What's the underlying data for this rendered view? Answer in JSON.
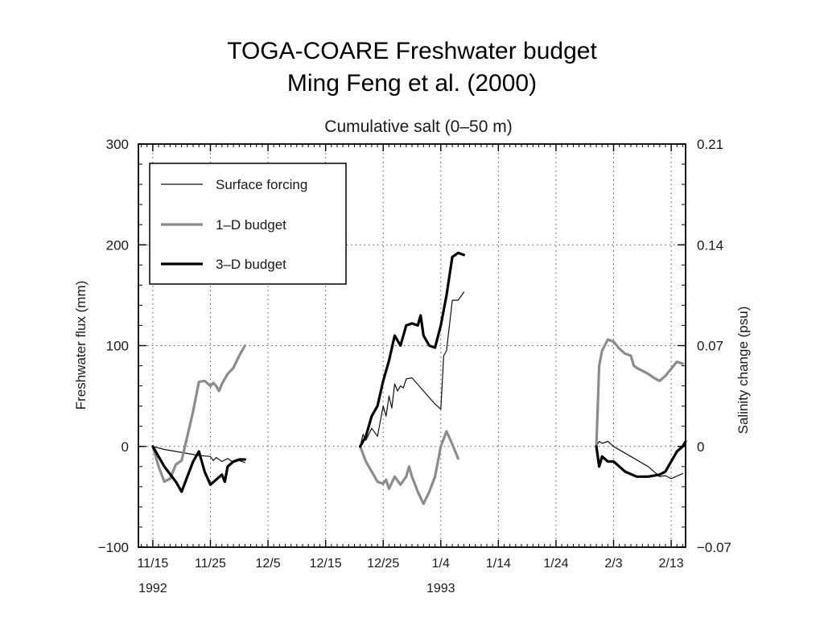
{
  "slide": {
    "title_line1": "TOGA-COARE Freshwater budget",
    "title_line2": "Ming Feng et al. (2000)"
  },
  "chart_data": {
    "type": "line",
    "title": "Cumulative salt (0–50 m)",
    "ylabel": "Freshwater flux (mm)",
    "y2label": "Salinity change (psu)",
    "ylim": [
      -100,
      300
    ],
    "y2lim": [
      -0.07,
      0.21
    ],
    "yticks": [
      -100,
      0,
      100,
      200,
      300
    ],
    "yticklabels": [
      "−100",
      "0",
      "100",
      "200",
      "300"
    ],
    "y2ticks": [
      -0.07,
      0,
      0.07,
      0.14,
      0.21
    ],
    "y2ticklabels": [
      "−0.07",
      "0",
      "0.07",
      "0.14",
      "0.21"
    ],
    "x_unit": "days since 1992-11-15",
    "xlim": [
      -2.5,
      92.5
    ],
    "xticks": [
      0,
      10,
      20,
      30,
      40,
      50,
      60,
      70,
      80,
      90
    ],
    "xticklabels": [
      "11/15",
      "11/25",
      "12/5",
      "12/15",
      "12/25",
      "1/4",
      "1/14",
      "1/24",
      "2/3",
      "2/13"
    ],
    "year_labels": [
      {
        "x": 0,
        "text": "1992"
      },
      {
        "x": 50,
        "text": "1993"
      }
    ],
    "grid": true,
    "legend": {
      "placement": "top-left"
    },
    "series": [
      {
        "name": "Surface forcing",
        "color": "#111111",
        "width": 1.2,
        "segments": [
          [
            [
              0,
              0
            ],
            [
              2,
              -3
            ],
            [
              4,
              -5
            ],
            [
              6,
              -7
            ],
            [
              8,
              -9
            ],
            [
              10,
              -10
            ],
            [
              10.5,
              -14
            ],
            [
              11,
              -11
            ],
            [
              12,
              -15
            ],
            [
              13,
              -12
            ],
            [
              14,
              -16
            ],
            [
              15,
              -14
            ],
            [
              16,
              -16
            ]
          ],
          [
            [
              36,
              0
            ],
            [
              36.5,
              12
            ],
            [
              37,
              6
            ],
            [
              38,
              18
            ],
            [
              39,
              10
            ],
            [
              40,
              40
            ],
            [
              40.5,
              30
            ],
            [
              41,
              50
            ],
            [
              41.5,
              38
            ],
            [
              42,
              62
            ],
            [
              42.5,
              55
            ],
            [
              43,
              60
            ],
            [
              43.5,
              58
            ],
            [
              44,
              67
            ],
            [
              45,
              68
            ],
            [
              47,
              55
            ],
            [
              49,
              42
            ],
            [
              50,
              37
            ],
            [
              50.5,
              90
            ],
            [
              51,
              95
            ],
            [
              51.5,
              120
            ],
            [
              52,
              145
            ],
            [
              53,
              145
            ],
            [
              54,
              153
            ]
          ],
          [
            [
              77,
              0
            ],
            [
              77.5,
              5
            ],
            [
              78,
              3
            ],
            [
              79,
              5
            ],
            [
              80,
              0
            ],
            [
              83,
              -10
            ],
            [
              86,
              -20
            ],
            [
              88,
              -30
            ],
            [
              89,
              -29
            ],
            [
              90,
              -32
            ],
            [
              92,
              -27
            ]
          ]
        ]
      },
      {
        "name": "1–D budget",
        "color": "#8c8c8c",
        "width": 3.2,
        "segments": [
          [
            [
              0,
              0
            ],
            [
              1,
              -20
            ],
            [
              2,
              -35
            ],
            [
              3,
              -32
            ],
            [
              4,
              -18
            ],
            [
              5,
              -14
            ],
            [
              6,
              10
            ],
            [
              7,
              35
            ],
            [
              8,
              64
            ],
            [
              9,
              65
            ],
            [
              10,
              60
            ],
            [
              10.5,
              63
            ],
            [
              11,
              60
            ],
            [
              11.5,
              55
            ],
            [
              12,
              62
            ],
            [
              13,
              72
            ],
            [
              14,
              78
            ],
            [
              15,
              90
            ],
            [
              16,
              100
            ]
          ],
          [
            [
              36,
              0
            ],
            [
              37,
              -15
            ],
            [
              38,
              -25
            ],
            [
              39,
              -35
            ],
            [
              40,
              -37
            ],
            [
              40.5,
              -33
            ],
            [
              41,
              -42
            ],
            [
              42,
              -30
            ],
            [
              43,
              -38
            ],
            [
              44,
              -30
            ],
            [
              44.5,
              -20
            ],
            [
              45,
              -30
            ],
            [
              46,
              -45
            ],
            [
              47,
              -57
            ],
            [
              48,
              -45
            ],
            [
              49,
              -30
            ],
            [
              50,
              0
            ],
            [
              51,
              15
            ],
            [
              52,
              2
            ],
            [
              53,
              -12
            ]
          ],
          [
            [
              77,
              0
            ],
            [
              77.5,
              80
            ],
            [
              78,
              95
            ],
            [
              79,
              106
            ],
            [
              80,
              104
            ],
            [
              81,
              97
            ],
            [
              82,
              92
            ],
            [
              83,
              90
            ],
            [
              83.5,
              80
            ],
            [
              84,
              78
            ],
            [
              85,
              75
            ],
            [
              86,
              72
            ],
            [
              87,
              68
            ],
            [
              88,
              65
            ],
            [
              89,
              70
            ],
            [
              90,
              77
            ],
            [
              91,
              84
            ],
            [
              92,
              82
            ]
          ]
        ]
      },
      {
        "name": "3–D budget",
        "color": "#000000",
        "width": 3.2,
        "segments": [
          [
            [
              0,
              0
            ],
            [
              2,
              -20
            ],
            [
              4,
              -35
            ],
            [
              5,
              -45
            ],
            [
              6,
              -30
            ],
            [
              7,
              -15
            ],
            [
              8,
              -5
            ],
            [
              9,
              -25
            ],
            [
              10,
              -38
            ],
            [
              11,
              -33
            ],
            [
              12,
              -28
            ],
            [
              12.5,
              -35
            ],
            [
              13,
              -20
            ],
            [
              14,
              -15
            ],
            [
              15,
              -13
            ],
            [
              16,
              -13
            ]
          ],
          [
            [
              36,
              0
            ],
            [
              37,
              10
            ],
            [
              38,
              30
            ],
            [
              39,
              40
            ],
            [
              40,
              65
            ],
            [
              41,
              85
            ],
            [
              42,
              110
            ],
            [
              43,
              100
            ],
            [
              44,
              120
            ],
            [
              45,
              122
            ],
            [
              46,
              120
            ],
            [
              46.5,
              130
            ],
            [
              47,
              110
            ],
            [
              48,
              100
            ],
            [
              49,
              98
            ],
            [
              50,
              120
            ],
            [
              51,
              150
            ],
            [
              52,
              188
            ],
            [
              53,
              192
            ],
            [
              54,
              190
            ]
          ],
          [
            [
              77,
              0
            ],
            [
              77.5,
              -20
            ],
            [
              78,
              -10
            ],
            [
              79,
              -15
            ],
            [
              80,
              -15
            ],
            [
              81,
              -20
            ],
            [
              82,
              -25
            ],
            [
              84,
              -30
            ],
            [
              86,
              -30
            ],
            [
              88,
              -28
            ],
            [
              89,
              -25
            ],
            [
              90,
              -15
            ],
            [
              91,
              -5
            ],
            [
              92,
              0
            ],
            [
              92.5,
              5
            ]
          ]
        ]
      }
    ]
  }
}
